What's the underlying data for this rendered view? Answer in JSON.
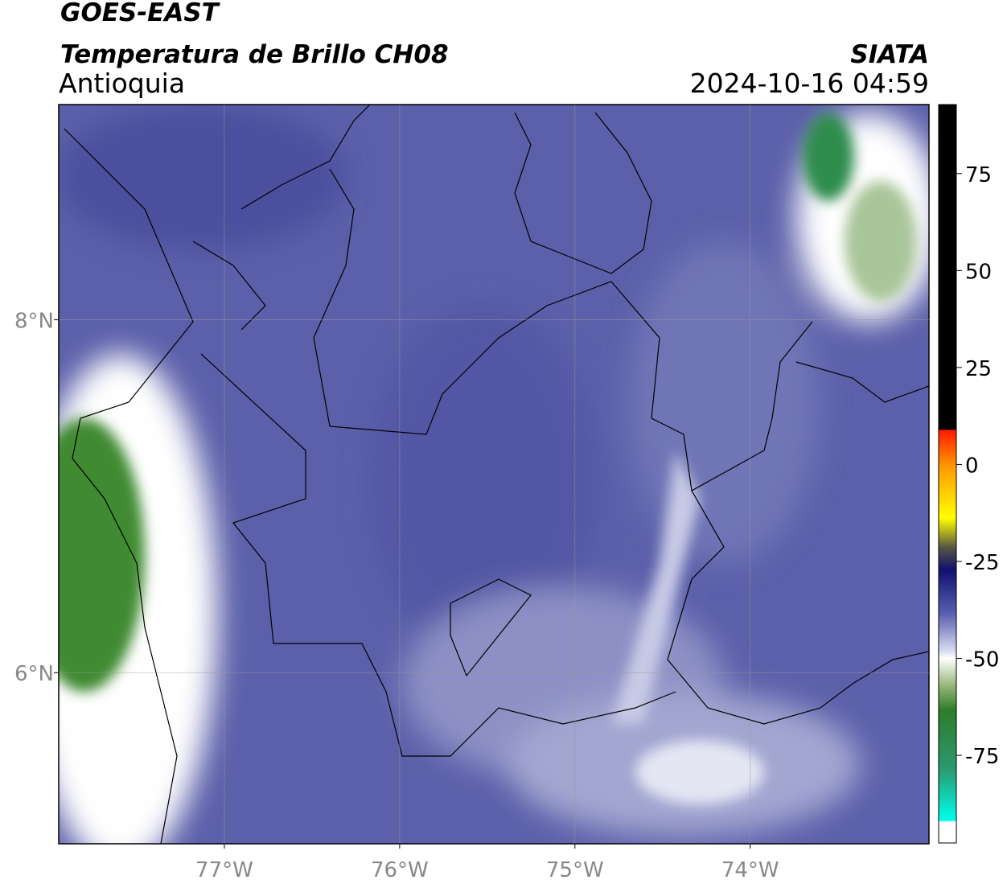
{
  "header": {
    "title": "GOES-EAST",
    "subtitle": "Temperatura de Brillo CH08",
    "region": "Antioquia",
    "source": "SIATA",
    "datetime": "2024-10-16 04:59"
  },
  "map": {
    "xlim": [
      -77.945,
      -72.98
    ],
    "ylim": [
      5.03,
      9.22
    ],
    "xticks": [
      {
        "value": -77,
        "label": "77°W"
      },
      {
        "value": -76,
        "label": "76°W"
      },
      {
        "value": -75,
        "label": "75°W"
      },
      {
        "value": -74,
        "label": "74°W"
      }
    ],
    "yticks": [
      {
        "value": 8,
        "label": "8°N"
      },
      {
        "value": 6,
        "label": "6°N"
      }
    ],
    "grid": true
  },
  "colorbar": {
    "lim": [
      -97.6,
      92.8
    ],
    "ticks": [
      75,
      50,
      25,
      0,
      -25,
      -50,
      -75
    ]
  }
}
